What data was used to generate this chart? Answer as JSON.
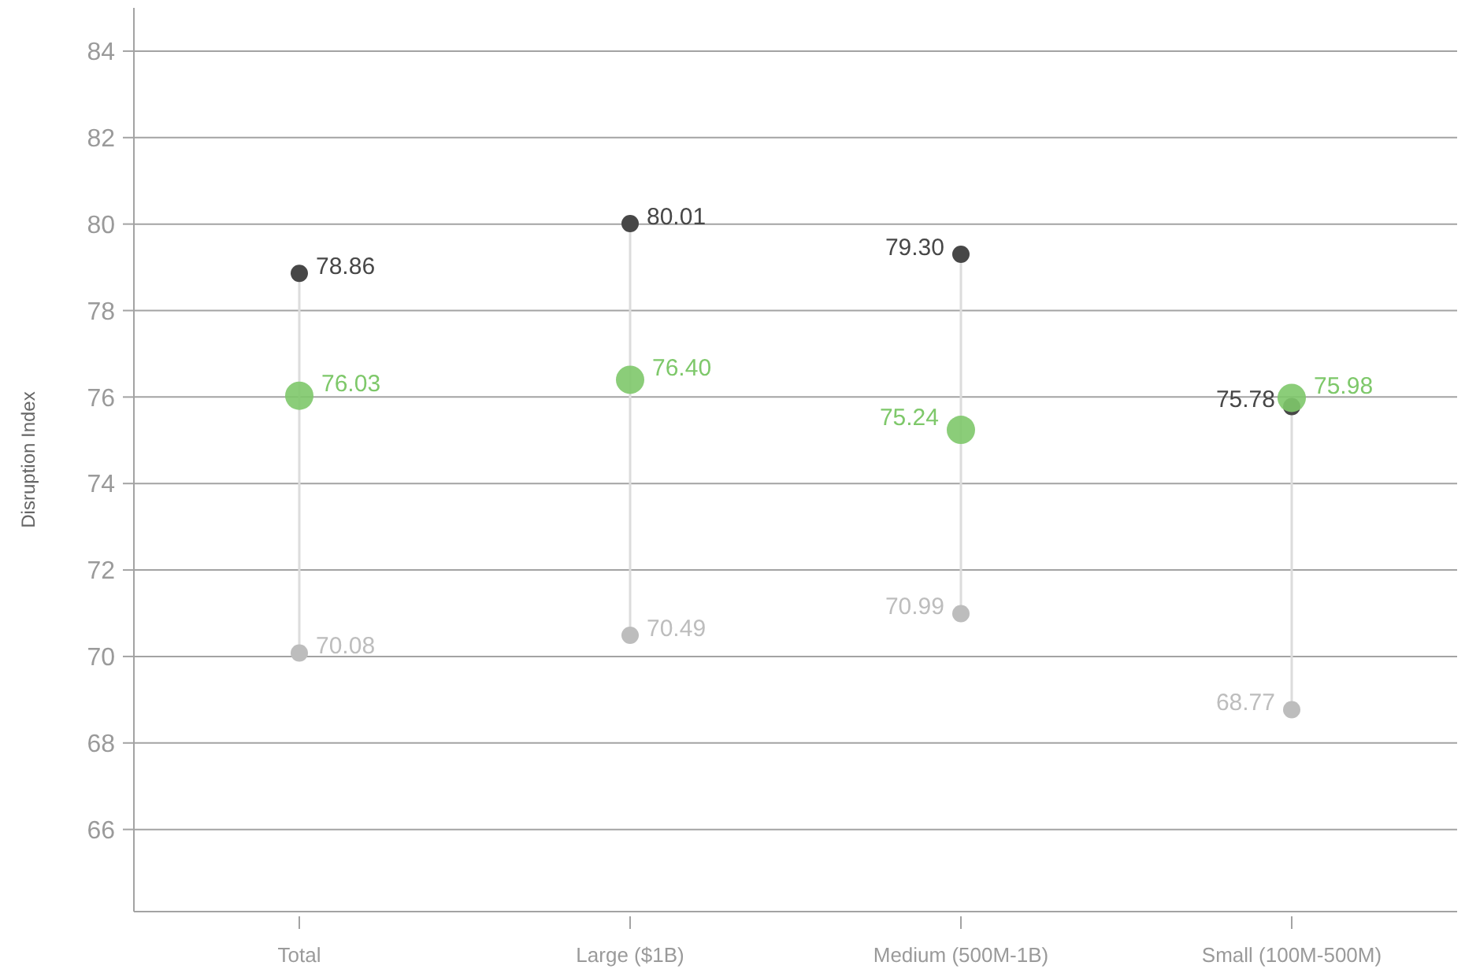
{
  "chart_data": {
    "type": "scatter",
    "ylabel": "Disruption Index",
    "categories": [
      "Total",
      "Large ($1B)",
      "Medium (500M-1B)",
      "Small (100M-500M)"
    ],
    "series": [
      {
        "color": "#bdbdbd",
        "values": [
          70.08,
          70.49,
          70.99,
          68.77
        ],
        "value_labels": [
          "70.08",
          "70.49",
          "70.99",
          "68.77"
        ]
      },
      {
        "color": "#474747",
        "values": [
          78.86,
          80.01,
          79.3,
          75.78
        ],
        "value_labels": [
          "78.86",
          "80.01",
          "79.30",
          "75.78"
        ]
      },
      {
        "color": "#7ec86a",
        "values": [
          76.03,
          76.4,
          75.24,
          75.98
        ],
        "value_labels": [
          "76.03",
          "76.40",
          "75.24",
          "75.98"
        ]
      }
    ],
    "ylim": [
      64.1,
      85
    ],
    "yticks": [
      66,
      68,
      70,
      72,
      74,
      76,
      78,
      80,
      82,
      84
    ],
    "grid": "y",
    "marker": "circle"
  }
}
